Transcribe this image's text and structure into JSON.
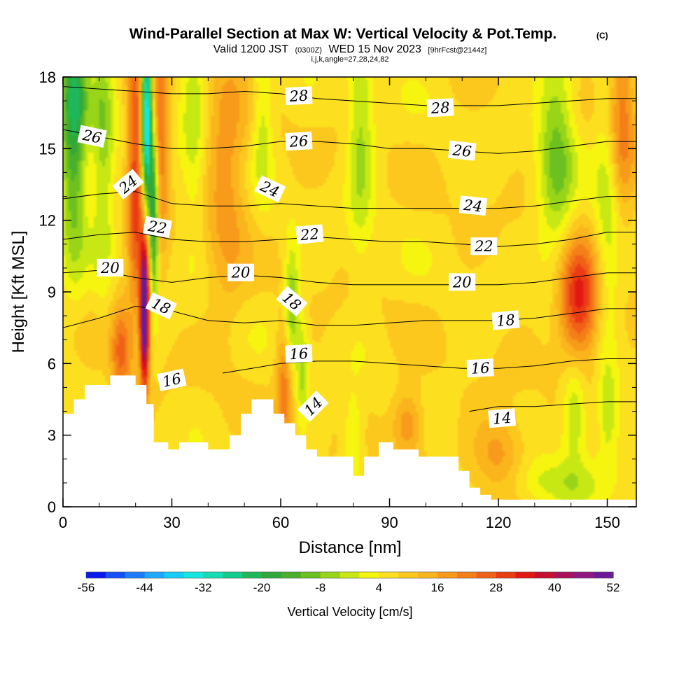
{
  "header": {
    "title": "Wind-Parallel Section at Max W: Vertical Velocity & Pot.Temp.",
    "copyright": "(C)",
    "valid_prefix": "Valid 1200 JST",
    "valid_utc": "(0300Z)",
    "valid_date": "WED 15 Nov 2023",
    "forecast": "[9hrFcst@2144z]",
    "indices": "i,j,k,angle=27,28,24,82"
  },
  "chart_data": {
    "type": "heatmap",
    "xlabel": "Distance [nm]",
    "ylabel": "Height [Kft MSL]",
    "xlim": [
      0,
      158
    ],
    "ylim": [
      0,
      18
    ],
    "x_ticks": [
      0,
      30,
      60,
      90,
      120,
      150
    ],
    "y_ticks": [
      0,
      3,
      6,
      9,
      12,
      15,
      18
    ],
    "x_minor_step": 10,
    "y_minor_step": 1,
    "colorbar": {
      "title": "Vertical Velocity [cm/s]",
      "min": -56,
      "max": 52,
      "step": 4,
      "tick_labels": [
        -56,
        -44,
        -32,
        -20,
        -8,
        4,
        16,
        28,
        40,
        52
      ],
      "colors": [
        "#0a18ee",
        "#1450f6",
        "#1e7cfa",
        "#1ea8fa",
        "#14cdf6",
        "#12e8e0",
        "#14dcb4",
        "#14cc8c",
        "#1eb85a",
        "#32a83a",
        "#4ab02c",
        "#6cc020",
        "#98d418",
        "#c8e814",
        "#f6f510",
        "#fce020",
        "#fcc81e",
        "#fab41c",
        "#f89a1a",
        "#f47e18",
        "#f06016",
        "#ea3c14",
        "#e21812",
        "#c60e30",
        "#a8125c",
        "#8e1880",
        "#6c1898"
      ]
    },
    "terrain_profile": {
      "x": [
        0,
        3,
        3,
        6,
        6,
        13,
        13,
        20,
        20,
        23,
        23,
        25,
        25,
        29,
        29,
        32,
        32,
        40,
        40,
        46,
        46,
        49,
        49,
        52,
        52,
        58,
        58,
        61,
        61,
        64,
        64,
        67,
        67,
        70,
        70,
        80,
        80,
        83,
        83,
        87,
        87,
        91,
        91,
        98,
        98,
        109,
        109,
        112,
        112,
        115,
        115,
        118,
        118,
        121,
        121,
        128,
        128,
        158
      ],
      "height": [
        3.9,
        3.9,
        4.5,
        4.5,
        5.1,
        5.1,
        5.5,
        5.5,
        5.1,
        5.1,
        4.3,
        4.3,
        2.7,
        2.7,
        2.4,
        2.4,
        2.7,
        2.7,
        2.4,
        2.4,
        3.0,
        3.0,
        3.9,
        3.9,
        4.5,
        4.5,
        3.9,
        3.9,
        3.5,
        3.5,
        3.0,
        3.0,
        2.4,
        2.4,
        2.1,
        2.1,
        1.3,
        1.3,
        2.1,
        2.1,
        2.7,
        2.7,
        2.4,
        2.4,
        2.1,
        2.1,
        1.5,
        1.5,
        0.8,
        0.8,
        0.5,
        0.5,
        0.3,
        0.3,
        0.3,
        0.3,
        0.3,
        0.3
      ]
    },
    "vertical_velocity_features": [
      {
        "x": 3,
        "z": 16.5,
        "w": -28,
        "sx": 2.5,
        "sz": 4.0
      },
      {
        "x": 11,
        "z": 15.0,
        "w": -14,
        "sx": 2.2,
        "sz": 3.5
      },
      {
        "x": 20,
        "z": 14.0,
        "w": 24,
        "sx": 1.6,
        "sz": 4.0
      },
      {
        "x": 22.5,
        "z": 8.2,
        "w": 52,
        "sx": 0.9,
        "sz": 2.2
      },
      {
        "x": 23,
        "z": 16.5,
        "w": -48,
        "sx": 1.0,
        "sz": 2.8
      },
      {
        "x": 25,
        "z": 12.0,
        "w": -30,
        "sx": 0.9,
        "sz": 2.2
      },
      {
        "x": 27,
        "z": 15.5,
        "w": 18,
        "sx": 1.5,
        "sz": 3.0
      },
      {
        "x": 45,
        "z": 14.0,
        "w": 12,
        "sx": 4.0,
        "sz": 4.0
      },
      {
        "x": 36,
        "z": 16.0,
        "w": -10,
        "sx": 2.5,
        "sz": 3.0
      },
      {
        "x": 55,
        "z": 16.5,
        "w": -10,
        "sx": 2.0,
        "sz": 2.5
      },
      {
        "x": 63,
        "z": 8.3,
        "w": -16,
        "sx": 1.4,
        "sz": 1.8
      },
      {
        "x": 66,
        "z": 5.8,
        "w": -12,
        "sx": 1.2,
        "sz": 1.5
      },
      {
        "x": 61,
        "z": 5.0,
        "w": 16,
        "sx": 1.6,
        "sz": 1.8
      },
      {
        "x": 82,
        "z": 15.5,
        "w": -12,
        "sx": 2.5,
        "sz": 3.5
      },
      {
        "x": 80,
        "z": 2.8,
        "w": -10,
        "sx": 2.0,
        "sz": 1.2
      },
      {
        "x": 136,
        "z": 15.0,
        "w": -16,
        "sx": 3.5,
        "sz": 3.5
      },
      {
        "x": 150,
        "z": 12.0,
        "w": -10,
        "sx": 2.5,
        "sz": 4.0
      },
      {
        "x": 142,
        "z": 8.5,
        "w": 28,
        "sx": 4.0,
        "sz": 1.8
      },
      {
        "x": 141,
        "z": 4.0,
        "w": -14,
        "sx": 2.5,
        "sz": 1.5
      },
      {
        "x": 150,
        "z": 4.0,
        "w": -10,
        "sx": 2.0,
        "sz": 1.5
      },
      {
        "x": 135,
        "z": 1.0,
        "w": -8,
        "sx": 10.0,
        "sz": 0.7
      },
      {
        "x": 154,
        "z": 16.5,
        "w": 16,
        "sx": 2.5,
        "sz": 3.0
      },
      {
        "x": 16,
        "z": 6.5,
        "w": 18,
        "sx": 2.0,
        "sz": 1.5
      },
      {
        "x": 95,
        "z": 3.5,
        "w": 14,
        "sx": 3.0,
        "sz": 1.0
      },
      {
        "x": 120,
        "z": 2.2,
        "w": 12,
        "sx": 5.0,
        "sz": 1.2
      }
    ],
    "potential_temperature_contours": [
      {
        "value": 14,
        "x": [
          112,
          120,
          130,
          140,
          150,
          158
        ],
        "height": [
          4.0,
          4.2,
          4.2,
          4.3,
          4.4,
          4.4
        ],
        "label_x": 121
      },
      {
        "value": 16,
        "x": [
          44,
          52,
          60,
          70,
          80,
          90,
          100,
          110,
          120,
          130,
          140,
          150,
          158
        ],
        "height": [
          5.6,
          5.8,
          6.0,
          6.1,
          6.1,
          6.0,
          5.9,
          5.8,
          5.8,
          5.9,
          6.1,
          6.2,
          6.2
        ],
        "label_x": 115
      },
      {
        "value": 18,
        "x": [
          0,
          10,
          20,
          30,
          40,
          50,
          60,
          70,
          80,
          90,
          100,
          110,
          120,
          130,
          140,
          150,
          158
        ],
        "height": [
          7.5,
          7.9,
          8.4,
          8.2,
          7.8,
          7.7,
          7.8,
          7.6,
          7.6,
          7.7,
          7.8,
          7.8,
          7.8,
          7.9,
          8.1,
          8.3,
          8.3
        ],
        "label_x": 122
      },
      {
        "value": 20,
        "x": [
          0,
          10,
          20,
          30,
          40,
          50,
          60,
          70,
          80,
          90,
          100,
          110,
          120,
          130,
          140,
          150,
          158
        ],
        "height": [
          9.8,
          9.9,
          9.6,
          9.4,
          9.6,
          9.7,
          9.6,
          9.4,
          9.3,
          9.3,
          9.3,
          9.3,
          9.3,
          9.4,
          9.6,
          9.8,
          9.8
        ],
        "label_x": 110
      },
      {
        "value": 22,
        "x": [
          0,
          10,
          20,
          30,
          40,
          50,
          60,
          70,
          80,
          90,
          100,
          110,
          120,
          130,
          140,
          150,
          158
        ],
        "height": [
          11.2,
          11.4,
          11.5,
          11.2,
          11.1,
          11.1,
          11.2,
          11.3,
          11.2,
          11.1,
          11.1,
          11.0,
          10.9,
          11.0,
          11.2,
          11.5,
          11.5
        ],
        "label_x": 116
      },
      {
        "value": 24,
        "x": [
          0,
          10,
          20,
          30,
          40,
          50,
          60,
          70,
          80,
          90,
          100,
          110,
          120,
          130,
          140,
          150,
          158
        ],
        "height": [
          12.9,
          13.1,
          13.2,
          12.7,
          12.6,
          12.6,
          12.7,
          12.6,
          12.5,
          12.5,
          12.5,
          12.5,
          12.5,
          12.6,
          12.8,
          13.0,
          13.0
        ],
        "label_x": 113
      },
      {
        "value": 26,
        "x": [
          0,
          10,
          20,
          30,
          40,
          50,
          60,
          70,
          80,
          90,
          100,
          110,
          120,
          130,
          140,
          150,
          158
        ],
        "height": [
          15.8,
          15.5,
          15.2,
          15.0,
          15.0,
          15.1,
          15.3,
          15.3,
          15.2,
          15.0,
          15.0,
          14.9,
          14.8,
          14.9,
          15.1,
          15.3,
          15.3
        ],
        "label_x": 110
      },
      {
        "value": 28,
        "x": [
          0,
          10,
          20,
          30,
          40,
          50,
          60,
          70,
          80,
          90,
          100,
          110,
          120,
          130,
          140,
          150,
          158
        ],
        "height": [
          17.6,
          17.5,
          17.4,
          17.3,
          17.3,
          17.4,
          17.3,
          17.1,
          17.0,
          16.9,
          16.8,
          16.8,
          16.8,
          16.9,
          17.0,
          17.1,
          17.1
        ],
        "label_x": 104
      }
    ],
    "contour_labels": [
      {
        "text": "28",
        "x": 65,
        "z": 17.2,
        "angle": -3
      },
      {
        "text": "28",
        "x": 104,
        "z": 16.7,
        "angle": -3
      },
      {
        "text": "26",
        "x": 8,
        "z": 15.5,
        "angle": 12
      },
      {
        "text": "26",
        "x": 65,
        "z": 15.3,
        "angle": -3
      },
      {
        "text": "26",
        "x": 110,
        "z": 14.9,
        "angle": 6
      },
      {
        "text": "24",
        "x": 18,
        "z": 13.5,
        "angle": -40
      },
      {
        "text": "24",
        "x": 57,
        "z": 13.3,
        "angle": 25
      },
      {
        "text": "24",
        "x": 113,
        "z": 12.6,
        "angle": 6
      },
      {
        "text": "22",
        "x": 26,
        "z": 11.7,
        "angle": 10
      },
      {
        "text": "22",
        "x": 68,
        "z": 11.4,
        "angle": -5
      },
      {
        "text": "22",
        "x": 116,
        "z": 10.9,
        "angle": 0
      },
      {
        "text": "20",
        "x": 13,
        "z": 10.0,
        "angle": 0
      },
      {
        "text": "20",
        "x": 49,
        "z": 9.8,
        "angle": 0
      },
      {
        "text": "20",
        "x": 110,
        "z": 9.4,
        "angle": 0
      },
      {
        "text": "18",
        "x": 27,
        "z": 8.4,
        "angle": 25
      },
      {
        "text": "18",
        "x": 63,
        "z": 8.6,
        "angle": 40
      },
      {
        "text": "18",
        "x": 122,
        "z": 7.8,
        "angle": -5
      },
      {
        "text": "16",
        "x": 30,
        "z": 5.3,
        "angle": -12
      },
      {
        "text": "16",
        "x": 65,
        "z": 6.4,
        "angle": -3
      },
      {
        "text": "16",
        "x": 115,
        "z": 5.8,
        "angle": -3
      },
      {
        "text": "14",
        "x": 69,
        "z": 4.2,
        "angle": -45
      },
      {
        "text": "14",
        "x": 121,
        "z": 3.7,
        "angle": -5
      }
    ]
  }
}
